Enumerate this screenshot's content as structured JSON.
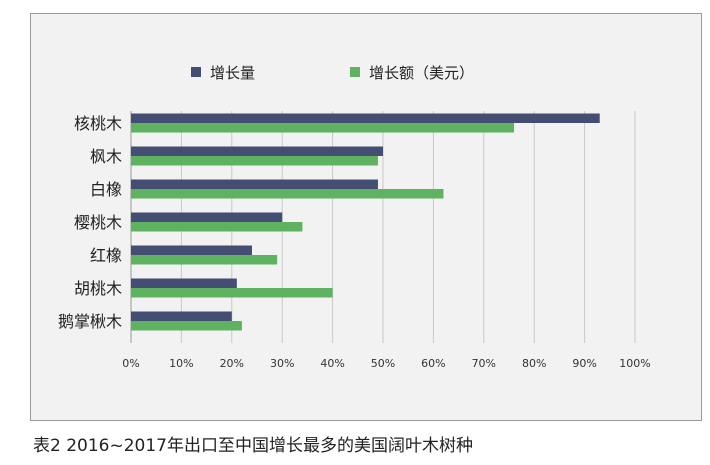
{
  "chart_data": {
    "type": "bar",
    "orientation": "horizontal",
    "categories": [
      "核桃木",
      "枫木",
      "白橡",
      "樱桃木",
      "红橡",
      "胡桃木",
      "鹅掌楸木"
    ],
    "series": [
      {
        "name": "增长量",
        "color": "#434e72",
        "values": [
          93,
          50,
          49,
          30,
          24,
          21,
          20
        ]
      },
      {
        "name": "增长额（美元）",
        "color": "#5fb360",
        "values": [
          76,
          49,
          62,
          34,
          29,
          40,
          22
        ]
      }
    ],
    "xlim": [
      0,
      100
    ],
    "ticks": [
      "0%",
      "10%",
      "20%",
      "30%",
      "40%",
      "50%",
      "60%",
      "70%",
      "80%",
      "90%",
      "100%"
    ],
    "grid": true,
    "legend_position": "top"
  },
  "caption": "表2 2016~2017年出口至中国增长最多的美国阔叶木树种"
}
